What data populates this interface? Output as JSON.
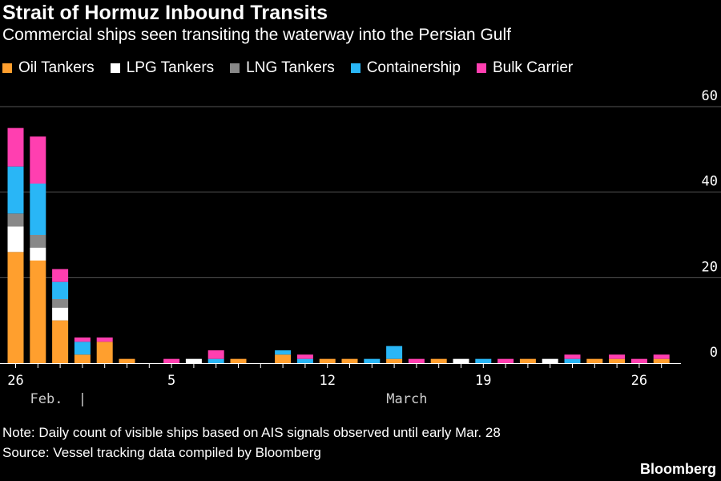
{
  "chart_data": {
    "type": "bar",
    "stacked": true,
    "title": "Strait of Hormuz Inbound Transits",
    "subtitle": "Commercial ships seen transiting the waterway into the Persian Gulf",
    "ylim": [
      0,
      60
    ],
    "yticks": [
      0,
      20,
      40,
      60
    ],
    "x_tick_labels": [
      {
        "day_index": 0,
        "label": "26"
      },
      {
        "day_index": 7,
        "label": "5"
      },
      {
        "day_index": 14,
        "label": "12"
      },
      {
        "day_index": 21,
        "label": "19"
      },
      {
        "day_index": 28,
        "label": "26"
      }
    ],
    "month_labels": [
      {
        "label": "Feb.",
        "after_day_index": 0
      },
      {
        "label": "March",
        "after_day_index": 16
      }
    ],
    "month_separator": "|",
    "month_separator_after_day_index": 3,
    "categories": [
      "Feb 26",
      "Feb 27",
      "Feb 28",
      "Mar 1",
      "Mar 2",
      "Mar 3",
      "Mar 4",
      "Mar 5",
      "Mar 6",
      "Mar 7",
      "Mar 8",
      "Mar 9",
      "Mar 10",
      "Mar 11",
      "Mar 12",
      "Mar 13",
      "Mar 14",
      "Mar 15",
      "Mar 16",
      "Mar 17",
      "Mar 18",
      "Mar 19",
      "Mar 20",
      "Mar 21",
      "Mar 22",
      "Mar 23",
      "Mar 24",
      "Mar 25",
      "Mar 26",
      "Mar 27"
    ],
    "series": [
      {
        "name": "Oil Tankers",
        "color": "#ff9f2e",
        "values": [
          26,
          24,
          10,
          2,
          5,
          1,
          0,
          0,
          0,
          0,
          1,
          0,
          2,
          0,
          1,
          1,
          0,
          1,
          0,
          1,
          0,
          0,
          0,
          1,
          0,
          0,
          1,
          1,
          0,
          1
        ]
      },
      {
        "name": "LPG Tankers",
        "color": "#ffffff",
        "values": [
          6,
          3,
          3,
          0,
          0,
          0,
          0,
          0,
          1,
          0,
          0,
          0,
          0,
          0,
          0,
          0,
          0,
          0,
          0,
          0,
          1,
          0,
          0,
          0,
          1,
          0,
          0,
          0,
          0,
          0
        ]
      },
      {
        "name": "LNG Tankers",
        "color": "#888888",
        "values": [
          3,
          3,
          2,
          0,
          0,
          0,
          0,
          0,
          0,
          0,
          0,
          0,
          0,
          0,
          0,
          0,
          0,
          0,
          0,
          0,
          0,
          0,
          0,
          0,
          0,
          0,
          0,
          0,
          0,
          0
        ]
      },
      {
        "name": "Containership",
        "color": "#29b6f6",
        "values": [
          11,
          12,
          4,
          3,
          0,
          0,
          0,
          0,
          0,
          1,
          0,
          0,
          1,
          1,
          0,
          0,
          1,
          3,
          0,
          0,
          0,
          1,
          0,
          0,
          0,
          1,
          0,
          0,
          0,
          0
        ]
      },
      {
        "name": "Bulk Carrier",
        "color": "#ff3fb0",
        "values": [
          9,
          11,
          3,
          1,
          1,
          0,
          0,
          1,
          0,
          2,
          0,
          0,
          0,
          1,
          0,
          0,
          0,
          0,
          1,
          0,
          0,
          0,
          1,
          0,
          0,
          1,
          0,
          1,
          1,
          1
        ]
      }
    ],
    "legend_position": "top-left",
    "grid": true
  },
  "note": "Note: Daily count of visible ships based on AIS signals observed until early Mar. 28",
  "source": "Source: Vessel tracking data compiled by Bloomberg",
  "brand": "Bloomberg"
}
